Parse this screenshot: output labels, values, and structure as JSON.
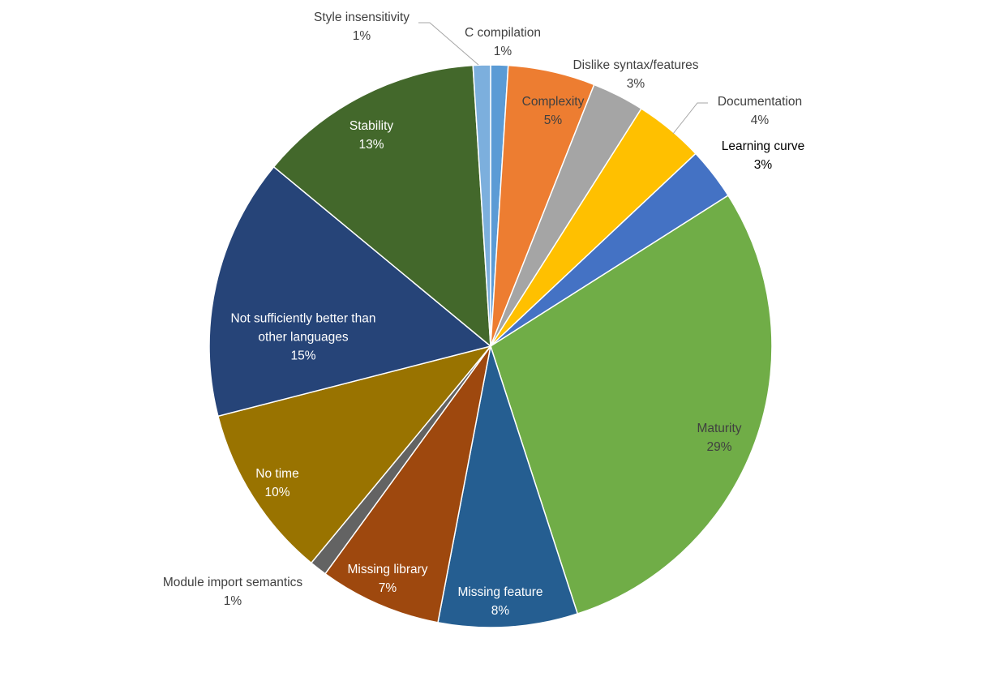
{
  "chart_data": {
    "type": "pie",
    "categories": [
      "C compilation",
      "Complexity",
      "Dislike syntax/features",
      "Documentation",
      "Learning curve",
      "Maturity",
      "Missing feature",
      "Missing library",
      "Module import semantics",
      "No time",
      "Not sufficiently better than other languages",
      "Stability",
      "Style insensitivity"
    ],
    "values": [
      1,
      5,
      3,
      4,
      3,
      29,
      8,
      7,
      1,
      10,
      15,
      13,
      1
    ],
    "value_labels": [
      "1%",
      "5%",
      "3%",
      "4%",
      "3%",
      "29%",
      "8%",
      "7%",
      "1%",
      "10%",
      "15%",
      "13%",
      "1%"
    ],
    "colors": [
      "#5b9bd5",
      "#ed7d31",
      "#a5a5a5",
      "#ffc000",
      "#4472c4",
      "#70ad47",
      "#255e91",
      "#9e480e",
      "#636363",
      "#997300",
      "#264478",
      "#43682b",
      "#7cafdd"
    ]
  }
}
